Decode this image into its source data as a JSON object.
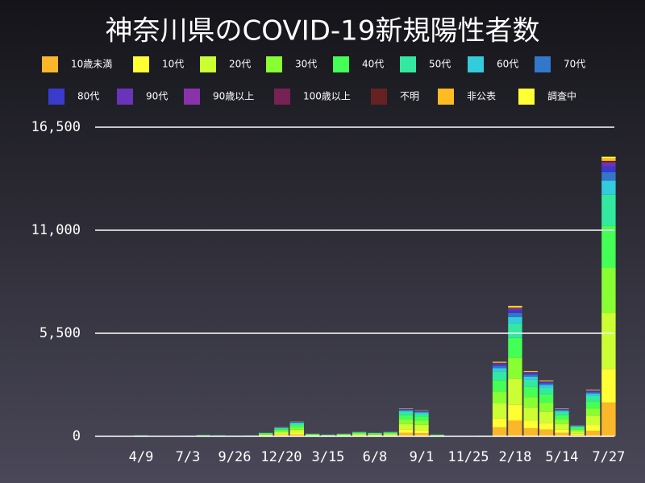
{
  "chart_data": {
    "type": "stacked-bar",
    "title": "神奈川県のCOVID-19新規陽性者数",
    "categories": [
      null,
      "4/9",
      null,
      null,
      "7/3",
      null,
      null,
      "9/26",
      null,
      null,
      "12/20",
      null,
      null,
      "3/15",
      null,
      null,
      "6/8",
      null,
      null,
      "9/1",
      null,
      null,
      "11/25",
      null,
      null,
      "2/18",
      null,
      null,
      "5/14",
      null,
      null,
      "7/27"
    ],
    "ylim": [
      0,
      16500
    ],
    "yticks": [
      0,
      {
        "value": 5500,
        "label": "5,500"
      },
      {
        "value": 11000,
        "label": "11,000"
      },
      {
        "value": 16500,
        "label": "16,500"
      }
    ],
    "grid": true,
    "series": [
      {
        "name": "10歳未満",
        "color": "#fbb72a",
        "values": [
          2,
          7,
          2,
          1,
          4,
          10,
          7,
          5,
          6,
          24,
          60,
          96,
          18,
          12,
          18,
          30,
          24,
          30,
          180,
          168,
          12,
          2,
          2,
          4,
          480,
          840,
          420,
          360,
          180,
          72,
          300,
          1800
        ]
      },
      {
        "name": "10代",
        "color": "#ffff33",
        "values": [
          2,
          7,
          2,
          1,
          4,
          10,
          7,
          5,
          6,
          24,
          60,
          96,
          18,
          12,
          18,
          30,
          24,
          30,
          180,
          168,
          12,
          2,
          2,
          4,
          480,
          840,
          420,
          360,
          180,
          72,
          300,
          1800
        ]
      },
      {
        "name": "20代",
        "color": "#ccff33",
        "values": [
          4,
          12,
          4,
          2,
          6,
          16,
          12,
          8,
          10,
          40,
          100,
          160,
          30,
          20,
          30,
          50,
          40,
          50,
          300,
          280,
          20,
          4,
          3,
          6,
          800,
          1400,
          700,
          600,
          300,
          120,
          500,
          3000
        ]
      },
      {
        "name": "30代",
        "color": "#88ff33",
        "values": [
          3,
          10,
          3,
          2,
          5,
          13,
          10,
          6,
          8,
          32,
          80,
          128,
          24,
          16,
          24,
          40,
          32,
          40,
          240,
          224,
          16,
          3,
          2,
          5,
          640,
          1120,
          560,
          480,
          240,
          96,
          400,
          2400
        ]
      },
      {
        "name": "40代",
        "color": "#44ff55",
        "values": [
          3,
          9,
          3,
          2,
          5,
          12,
          9,
          6,
          8,
          30,
          75,
          120,
          23,
          15,
          23,
          38,
          30,
          38,
          225,
          210,
          15,
          3,
          2,
          5,
          600,
          1050,
          525,
          450,
          225,
          90,
          375,
          2250
        ]
      },
      {
        "name": "50代",
        "color": "#33e8a0",
        "values": [
          2,
          7,
          2,
          1,
          3,
          9,
          7,
          4,
          6,
          22,
          55,
          88,
          17,
          11,
          17,
          28,
          22,
          28,
          165,
          154,
          11,
          2,
          2,
          3,
          440,
          770,
          385,
          330,
          165,
          66,
          275,
          1650
        ]
      },
      {
        "name": "60代",
        "color": "#33ccdd",
        "values": [
          1,
          3,
          1,
          1,
          2,
          4,
          3,
          2,
          3,
          10,
          25,
          40,
          8,
          5,
          8,
          13,
          10,
          13,
          75,
          70,
          5,
          1,
          1,
          2,
          200,
          350,
          175,
          150,
          75,
          30,
          125,
          750
        ]
      },
      {
        "name": "70代",
        "color": "#3377cc",
        "values": [
          1,
          2,
          1,
          0,
          1,
          2,
          2,
          1,
          2,
          6,
          15,
          24,
          5,
          3,
          5,
          8,
          6,
          8,
          45,
          42,
          3,
          1,
          0,
          1,
          120,
          210,
          105,
          90,
          45,
          18,
          75,
          450
        ]
      },
      {
        "name": "80代",
        "color": "#3a3acc",
        "values": [
          0,
          1,
          0,
          0,
          1,
          2,
          1,
          1,
          1,
          4,
          10,
          16,
          3,
          2,
          3,
          5,
          4,
          5,
          30,
          28,
          2,
          0,
          0,
          1,
          80,
          140,
          70,
          60,
          30,
          12,
          50,
          300
        ]
      },
      {
        "name": "90代",
        "color": "#6a33bb",
        "values": [
          0,
          1,
          0,
          0,
          0,
          1,
          1,
          0,
          1,
          2,
          5,
          8,
          2,
          1,
          2,
          3,
          2,
          3,
          15,
          14,
          1,
          0,
          0,
          0,
          40,
          70,
          35,
          30,
          15,
          6,
          25,
          150
        ]
      },
      {
        "name": "90歳以上",
        "color": "#8833aa",
        "values": [
          0,
          0,
          0,
          0,
          0,
          0,
          0,
          0,
          0,
          1,
          3,
          4,
          1,
          1,
          1,
          1,
          1,
          1,
          8,
          7,
          1,
          0,
          0,
          0,
          20,
          35,
          18,
          15,
          8,
          3,
          13,
          75
        ]
      },
      {
        "name": "100歳以上",
        "color": "#772255",
        "values": [
          0,
          0,
          0,
          0,
          0,
          0,
          0,
          0,
          0,
          0,
          0,
          0,
          0,
          0,
          0,
          0,
          0,
          0,
          0,
          0,
          0,
          0,
          0,
          0,
          0,
          0,
          0,
          0,
          0,
          0,
          0,
          0
        ]
      },
      {
        "name": "不明",
        "color": "#662222",
        "values": [
          0,
          0,
          0,
          0,
          0,
          0,
          0,
          0,
          0,
          1,
          3,
          4,
          1,
          1,
          1,
          1,
          1,
          1,
          8,
          7,
          1,
          0,
          0,
          0,
          20,
          35,
          18,
          15,
          8,
          3,
          13,
          75
        ]
      },
      {
        "name": "非公表",
        "color": "#ffbb22",
        "values": [
          0,
          1,
          0,
          0,
          0,
          1,
          1,
          0,
          1,
          2,
          5,
          8,
          2,
          1,
          2,
          3,
          2,
          3,
          15,
          14,
          1,
          0,
          0,
          0,
          40,
          70,
          35,
          30,
          15,
          6,
          25,
          150
        ]
      },
      {
        "name": "調査中",
        "color": "#ffff33",
        "values": [
          0,
          0,
          0,
          0,
          0,
          0,
          0,
          0,
          0,
          1,
          3,
          4,
          1,
          1,
          1,
          1,
          1,
          1,
          8,
          7,
          1,
          0,
          0,
          0,
          20,
          35,
          18,
          15,
          8,
          3,
          13,
          75
        ]
      }
    ]
  }
}
